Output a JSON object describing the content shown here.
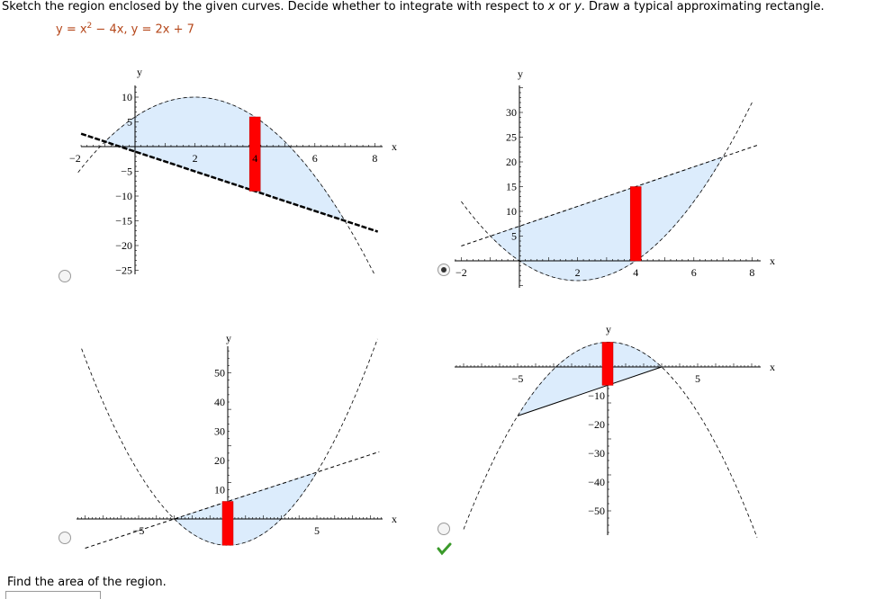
{
  "question": {
    "before": "Sketch the region enclosed by the given curves. Decide whether to integrate with respect to ",
    "var1": "x",
    "middle": " or ",
    "var2": "y",
    "after": ". Draw a typical approximating rectangle."
  },
  "equation": {
    "start": "y = x",
    "exponent": "2",
    "rest": " − 4x,   y = 2x + 7"
  },
  "options": [
    {
      "x_label": "x",
      "y_label": "y",
      "x_ticks": [
        "−2",
        "2",
        "4",
        "6",
        "8"
      ],
      "y_ticks": [
        "10",
        "5",
        "−5",
        "−10",
        "−15",
        "−20",
        "−25"
      ],
      "selected": false,
      "marked_correct": false
    },
    {
      "x_label": "x",
      "y_label": "y",
      "x_ticks": [
        "−2",
        "2",
        "4",
        "6",
        "8"
      ],
      "y_ticks": [
        "30",
        "25",
        "20",
        "15",
        "10",
        "5"
      ],
      "selected": true,
      "marked_correct": false
    },
    {
      "x_label": "x",
      "y_label": "y",
      "x_ticks": [
        "−5",
        "5"
      ],
      "y_ticks": [
        "50",
        "40",
        "30",
        "20",
        "10"
      ],
      "selected": false,
      "marked_correct": false
    },
    {
      "x_label": "x",
      "y_label": "y",
      "x_ticks": [
        "−5",
        "5"
      ],
      "y_ticks": [
        "−10",
        "−20",
        "−30",
        "−40",
        "−50"
      ],
      "selected": false,
      "marked_correct": true
    }
  ],
  "footer": "Find the area of the region."
}
